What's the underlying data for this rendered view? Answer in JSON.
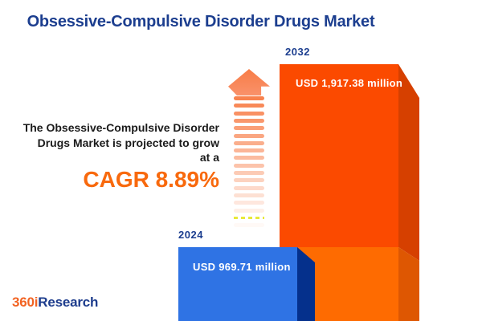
{
  "title": "Obsessive-Compulsive Disorder Drugs Market",
  "intro": {
    "lines": [
      "The Obsessive-Compulsive Disorder",
      "Drugs Market is projected to grow",
      "at a"
    ],
    "cagr": "CAGR 8.89%"
  },
  "bars": [
    {
      "year": "2024",
      "value_label": "USD 969.71 million",
      "value": 969.71,
      "front_color": "#2f73e4",
      "side_color": "#05308c"
    },
    {
      "year": "2032",
      "value_label": "USD 1,917.38 million",
      "value": 1917.38,
      "front_color": "#fb4a00",
      "side_color": "#d64000"
    }
  ],
  "logo": {
    "prefix": "360i",
    "suffix": "Research"
  },
  "colors": {
    "title_blue": "#1c3e8f",
    "accent_orange": "#f8690d",
    "bar_2024_front": "#2f73e4",
    "bar_2024_side": "#05308c",
    "bar_2032_front_upper": "#fb4a00",
    "bar_2032_front_lower": "#fe6b01",
    "bar_2032_side_upper": "#d64000",
    "bar_2032_side_lower": "#de5702",
    "arrow_head": "#f9875a",
    "arrow_stripe": "#f8824e",
    "arrow_dash_yellow": "#e8e93b",
    "logo_orange": "#f26322",
    "logo_blue": "#1e3d8d",
    "background": "#ffffff"
  },
  "chart_data": {
    "type": "bar",
    "orientation": "vertical",
    "categories": [
      "2024",
      "2032"
    ],
    "values": [
      969.71,
      1917.38
    ],
    "unit": "USD million",
    "value_labels": [
      "USD 969.71 million",
      "USD 1,917.38 million"
    ],
    "title": "Obsessive-Compulsive Disorder Drugs Market",
    "annotation": "The Obsessive-Compulsive Disorder Drugs Market is projected to grow at a CAGR 8.89%",
    "cagr_percent": 8.89,
    "bar_colors": [
      "#2f73e4",
      "#fb4a00"
    ],
    "legend": "none",
    "grid": false,
    "axes_shown": false
  }
}
